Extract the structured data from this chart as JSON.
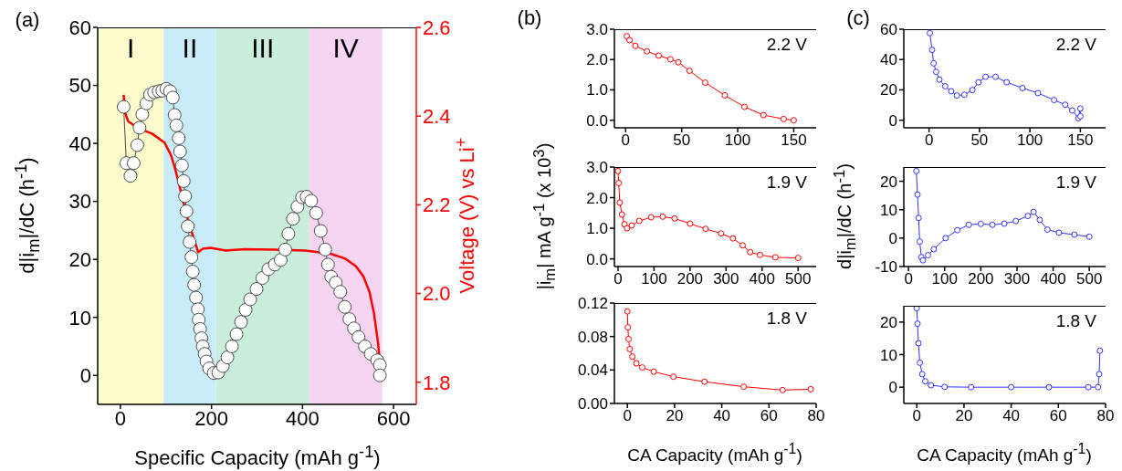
{
  "chart_data": [
    {
      "type": "line",
      "title": "(a)",
      "xlabel": "Specific Capacity (mAh g$^{-1}$)",
      "ylabel": "d|i$_{m}$|/dC (h$^{-1}$)",
      "y2label": "Voltage (V) vs Li$^{+}$",
      "marker": "circle",
      "xlim": [
        -50,
        650
      ],
      "xticks": [
        0,
        200,
        400,
        600
      ],
      "ylim": [
        -5,
        60
      ],
      "yticks": [
        0,
        10,
        20,
        30,
        40,
        50,
        60
      ],
      "y2lim": [
        1.75,
        2.6
      ],
      "y2ticks": [
        1.8,
        {
          "value": 2,
          "label": "2.0"
        },
        2.2,
        2.4,
        2.6
      ],
      "bands": [
        {
          "axis": "x",
          "from": -50,
          "to": 95,
          "label": "I",
          "color": "#fdfccc"
        },
        {
          "axis": "x",
          "from": 95,
          "to": 210,
          "label": "II",
          "color": "#c9edf8"
        },
        {
          "axis": "x",
          "from": 210,
          "to": 415,
          "label": "III",
          "color": "#c9eedb"
        },
        {
          "axis": "x",
          "from": 415,
          "to": 575,
          "label": "IV",
          "color": "#f5d5f2"
        }
      ],
      "series": [
        {
          "color": "#4d4d4d",
          "x": [
            7,
            13,
            22,
            29,
            37,
            42,
            48,
            57,
            65,
            74,
            84,
            92,
            101,
            109,
            115,
            119,
            123,
            128,
            131,
            135,
            139,
            142,
            145,
            148,
            152,
            156,
            159,
            162,
            166,
            170,
            172,
            175,
            178,
            181,
            185,
            189,
            195,
            205,
            215,
            225,
            235,
            245,
            255,
            265,
            275,
            285,
            299,
            312,
            325,
            339,
            352,
            362,
            369,
            379,
            389,
            399,
            409,
            419,
            430,
            440,
            450,
            456,
            463,
            473,
            483,
            493,
            503,
            513,
            523,
            537,
            550,
            564,
            570,
            570
          ],
          "values": [
            46.3,
            36.6,
            34.4,
            36.6,
            39.7,
            42.7,
            45,
            46.9,
            48.4,
            48.8,
            49,
            49.1,
            49.4,
            49,
            47.9,
            44.9,
            43.1,
            40.9,
            38.6,
            36.2,
            33.5,
            30.9,
            28.3,
            25.7,
            23,
            20.4,
            17.9,
            15.6,
            13.4,
            11.4,
            9.6,
            8,
            6.4,
            5,
            3.7,
            2.4,
            1.2,
            0.4,
            0.5,
            1.6,
            3.1,
            5,
            7.1,
            9.2,
            11.3,
            13.1,
            14.9,
            16.8,
            18.3,
            19.1,
            19.9,
            21.7,
            24.4,
            27,
            29.1,
            30.7,
            30.8,
            30.1,
            28,
            24.9,
            21.7,
            19.1,
            17,
            16,
            14.4,
            11.8,
            9.7,
            8.1,
            6.6,
            5,
            3.7,
            2.6,
            1.8,
            0
          ]
        },
        {
          "color": "#ff0000",
          "axis": "y2",
          "marker": "none",
          "x": [
            7,
            10,
            17,
            37,
            70,
            97,
            111,
            121,
            131,
            144,
            158,
            171,
            181,
            198,
            232,
            272,
            339,
            406,
            460,
            493,
            517,
            534,
            547,
            557,
            566,
            574
          ],
          "values": [
            2.448,
            2.408,
            2.388,
            2.374,
            2.36,
            2.34,
            2.312,
            2.278,
            2.237,
            2.182,
            2.134,
            2.093,
            2.101,
            2.103,
            2.097,
            2.1,
            2.099,
            2.097,
            2.09,
            2.079,
            2.062,
            2.038,
            2.004,
            1.956,
            1.888,
            1.802
          ]
        }
      ]
    },
    {
      "type": "line",
      "title": "(b)",
      "annotations": [
        "2.2 V"
      ],
      "marker": "circle",
      "xlim": [
        -10,
        170
      ],
      "xticks": [
        0,
        50,
        100,
        150
      ],
      "ylim": [
        -0.25,
        3
      ],
      "yticks": [
        {
          "value": 0,
          "label": "0.0"
        },
        {
          "value": 1,
          "label": "1.0"
        },
        {
          "value": 2,
          "label": "2.0"
        },
        {
          "value": 3,
          "label": "3.0"
        }
      ],
      "series": [
        {
          "color": "#ff0000",
          "x": [
            1,
            3.5,
            8.7,
            19,
            29.5,
            40,
            47,
            57,
            71,
            88.5,
            106,
            123,
            141,
            150
          ],
          "values": [
            2.77,
            2.64,
            2.45,
            2.27,
            2.13,
            2.01,
            1.91,
            1.63,
            1.24,
            0.82,
            0.44,
            0.17,
            0.04,
            0
          ]
        }
      ]
    },
    {
      "type": "line",
      "ylabel": "|i$_{m}$| mA g$^{-1}$ (x 10$^{3}$)",
      "annotations": [
        "1.9 V"
      ],
      "marker": "circle",
      "xlim": [
        -10,
        550
      ],
      "xticks": [
        0,
        100,
        200,
        300,
        400,
        500
      ],
      "ylim": [
        -0.25,
        3
      ],
      "yticks": [
        {
          "value": 0,
          "label": "0.0"
        },
        {
          "value": 1,
          "label": "1.0"
        },
        {
          "value": 2,
          "label": "2.0"
        },
        {
          "value": 3,
          "label": "3.0"
        }
      ],
      "series": [
        {
          "color": "#ff0000",
          "x": [
            0,
            2,
            5,
            11,
            18,
            25,
            38,
            59,
            92,
            124,
            157,
            200,
            243,
            286,
            319,
            346,
            367,
            394,
            437,
            500
          ],
          "values": [
            2.87,
            2.48,
            1.84,
            1.45,
            1.13,
            1,
            1.09,
            1.24,
            1.36,
            1.38,
            1.32,
            1.15,
            0.98,
            0.83,
            0.67,
            0.44,
            0.22,
            0.13,
            0.05,
            0.03
          ]
        }
      ]
    },
    {
      "type": "line",
      "xlabel": "CA Capacity (mAh g$^{-1}$)",
      "annotations": [
        "1.8 V"
      ],
      "marker": "circle",
      "xlim": [
        -5.5,
        80
      ],
      "xticks": [
        0,
        20,
        40,
        60,
        80
      ],
      "ylim": [
        0,
        0.12
      ],
      "yticks": [
        {
          "value": 0,
          "label": "0.00"
        },
        {
          "value": 0.04,
          "label": "0.04"
        },
        {
          "value": 0.08,
          "label": "0.08"
        },
        {
          "value": 0.12,
          "label": "0.12"
        }
      ],
      "series": [
        {
          "color": "#ff0000",
          "x": [
            0,
            0.2,
            0.5,
            1,
            2.1,
            3.8,
            6.3,
            11.2,
            19.5,
            32.7,
            49.3,
            65.8,
            77.7
          ],
          "values": [
            0.11,
            0.091,
            0.077,
            0.065,
            0.056,
            0.048,
            0.043,
            0.038,
            0.032,
            0.026,
            0.02,
            0.016,
            0.017
          ]
        }
      ]
    },
    {
      "type": "line",
      "title": "(c)",
      "annotations": [
        "2.2 V"
      ],
      "marker": "circle",
      "xlim": [
        -25,
        175
      ],
      "xticks": [
        0,
        50,
        100,
        150
      ],
      "ylim": [
        -5,
        60
      ],
      "yticks": [
        0,
        20,
        40,
        60
      ],
      "series": [
        {
          "color": "#3333ff",
          "x": [
            0.8,
            3,
            4.6,
            7,
            10.3,
            16,
            22,
            27.6,
            35,
            43,
            49,
            56,
            66,
            77,
            92.6,
            108,
            124,
            135,
            142,
            148,
            150,
            150
          ],
          "values": [
            57.4,
            46.4,
            37.5,
            31.9,
            26.8,
            22.4,
            19.1,
            16.3,
            16.8,
            19.9,
            25,
            28.6,
            28.6,
            25,
            21.2,
            17.9,
            13.3,
            10.2,
            6.4,
            1.3,
            7.7,
            2.6
          ]
        }
      ]
    },
    {
      "type": "line",
      "ylabel": "d|i$_{m}$|/dC (h$^{-1}$)",
      "annotations": [
        "1.9 V"
      ],
      "marker": "circle",
      "xlim": [
        -13,
        545
      ],
      "xticks": [
        0,
        100,
        200,
        300,
        400,
        500
      ],
      "ylim": [
        -10,
        25
      ],
      "yticks": [
        -10,
        0,
        10,
        20
      ],
      "series": [
        {
          "color": "#3333ff",
          "x": [
            21.6,
            24.8,
            28,
            31,
            35.6,
            40,
            54,
            70,
            102.6,
            135,
            167,
            200,
            232,
            265,
            297,
            330,
            346,
            363,
            384,
            416,
            459,
            500
          ],
          "values": [
            23.6,
            15.3,
            7.1,
            -1.2,
            -6.7,
            -7.8,
            -6,
            -3.9,
            0,
            2.8,
            4.7,
            5,
            4.7,
            5.1,
            6,
            7.8,
            9.2,
            6.4,
            3,
            1.9,
            1.2,
            0.5
          ]
        }
      ]
    },
    {
      "type": "line",
      "xlabel": "CA Capacity (mAh g$^{-1}$)",
      "annotations": [
        "1.8 V"
      ],
      "marker": "circle",
      "xlim": [
        -5.5,
        80
      ],
      "xticks": [
        0,
        20,
        40,
        60,
        80
      ],
      "ylim": [
        -5,
        25
      ],
      "yticks": [
        0,
        10,
        20
      ],
      "series": [
        {
          "color": "#3333ff",
          "x": [
            0,
            0.3,
            0.7,
            1.3,
            2.3,
            3.6,
            6,
            11.8,
            23,
            40,
            56,
            72.7,
            76.8,
            77.3,
            77.6
          ],
          "values": [
            24.3,
            19.5,
            13.5,
            7.5,
            4,
            1.8,
            0.6,
            0.1,
            0,
            0,
            0,
            0,
            0,
            4,
            11.2
          ]
        }
      ]
    }
  ]
}
